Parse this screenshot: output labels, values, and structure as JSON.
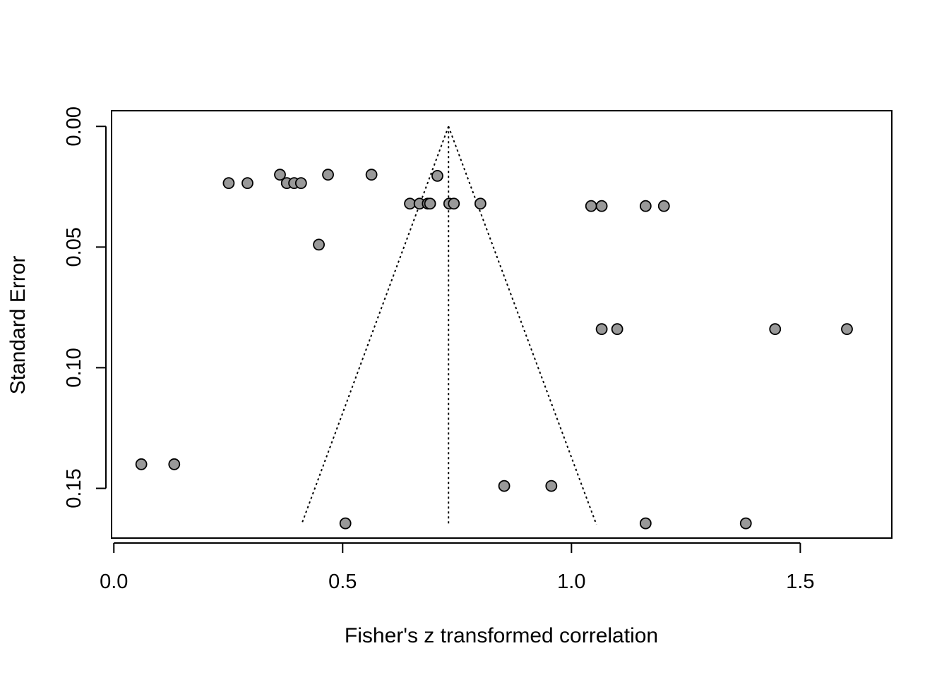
{
  "chart_data": {
    "type": "scatter",
    "title": "",
    "xlabel": "Fisher's z transformed correlation",
    "ylabel": "Standard Error",
    "xlim": [
      -0.005,
      1.7
    ],
    "ylim": [
      0.1706,
      -0.0065
    ],
    "y_axis_inverted": true,
    "x_ticks": [
      {
        "value": 0.0,
        "label": "0.0"
      },
      {
        "value": 0.5,
        "label": "0.5"
      },
      {
        "value": 1.0,
        "label": "1.0"
      },
      {
        "value": 1.5,
        "label": "1.5"
      }
    ],
    "y_ticks": [
      {
        "value": 0.0,
        "label": "0.00"
      },
      {
        "value": 0.05,
        "label": "0.05"
      },
      {
        "value": 0.1,
        "label": "0.10"
      },
      {
        "value": 0.15,
        "label": "0.15"
      }
    ],
    "grid": false,
    "legend": "none",
    "funnel": {
      "center": 0.7313,
      "se_max": 0.165,
      "lower_at_max": 0.41,
      "upper_at_max": 1.0545
    },
    "points": [
      {
        "x": 0.251,
        "y": 0.0235
      },
      {
        "x": 0.292,
        "y": 0.0235
      },
      {
        "x": 0.363,
        "y": 0.02
      },
      {
        "x": 0.378,
        "y": 0.0235
      },
      {
        "x": 0.394,
        "y": 0.0235
      },
      {
        "x": 0.409,
        "y": 0.0235
      },
      {
        "x": 0.468,
        "y": 0.02
      },
      {
        "x": 0.563,
        "y": 0.02
      },
      {
        "x": 0.707,
        "y": 0.0205
      },
      {
        "x": 0.647,
        "y": 0.032
      },
      {
        "x": 0.668,
        "y": 0.032
      },
      {
        "x": 0.686,
        "y": 0.032
      },
      {
        "x": 0.691,
        "y": 0.032
      },
      {
        "x": 0.733,
        "y": 0.032
      },
      {
        "x": 0.743,
        "y": 0.032
      },
      {
        "x": 0.801,
        "y": 0.032
      },
      {
        "x": 1.043,
        "y": 0.033
      },
      {
        "x": 1.066,
        "y": 0.033
      },
      {
        "x": 1.162,
        "y": 0.033
      },
      {
        "x": 1.202,
        "y": 0.033
      },
      {
        "x": 0.448,
        "y": 0.049
      },
      {
        "x": 1.066,
        "y": 0.084
      },
      {
        "x": 1.1,
        "y": 0.084
      },
      {
        "x": 1.445,
        "y": 0.084
      },
      {
        "x": 1.602,
        "y": 0.084
      },
      {
        "x": 0.06,
        "y": 0.14
      },
      {
        "x": 0.132,
        "y": 0.14
      },
      {
        "x": 0.853,
        "y": 0.149
      },
      {
        "x": 0.956,
        "y": 0.149
      },
      {
        "x": 0.506,
        "y": 0.1645
      },
      {
        "x": 1.162,
        "y": 0.1645
      },
      {
        "x": 1.381,
        "y": 0.1645
      }
    ],
    "colors": {
      "point_fill": "#999999",
      "point_stroke": "#000000",
      "line": "#000000",
      "background": "#ffffff"
    }
  }
}
